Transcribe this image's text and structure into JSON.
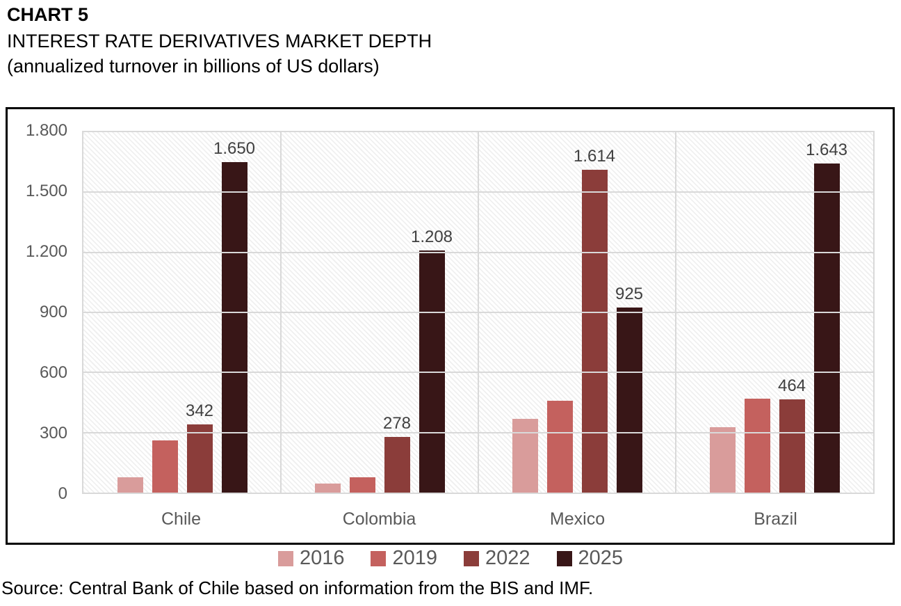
{
  "chart_data": {
    "type": "bar",
    "title": "CHART 5",
    "subtitle": "INTEREST RATE DERIVATIVES MARKET DEPTH",
    "subtitle2": "(annualized turnover in billions of US dollars)",
    "categories": [
      "Chile",
      "Colombia",
      "Mexico",
      "Brazil"
    ],
    "series": [
      {
        "name": "2016",
        "color": "#D99C9B",
        "values": [
          75,
          45,
          370,
          325
        ],
        "labels": [
          "",
          "",
          "",
          ""
        ]
      },
      {
        "name": "2019",
        "color": "#C4615E",
        "values": [
          260,
          78,
          460,
          470
        ],
        "labels": [
          "",
          "",
          "",
          ""
        ]
      },
      {
        "name": "2022",
        "color": "#8B3D3A",
        "values": [
          342,
          278,
          1614,
          464
        ],
        "labels": [
          "342",
          "278",
          "1.614",
          "464"
        ]
      },
      {
        "name": "2025",
        "color": "#381617",
        "values": [
          1650,
          1208,
          925,
          1643
        ],
        "labels": [
          "1.650",
          "1.208",
          "925",
          "1.643"
        ]
      }
    ],
    "ylim": [
      0,
      1800
    ],
    "y_tick_interval": 300,
    "y_tick_labels": [
      "0",
      "300",
      "600",
      "900",
      "1.200",
      "1.500",
      "1.800"
    ],
    "grid": true,
    "plot_background": "diagonal-hatch",
    "legend_position": "bottom",
    "colors": {
      "gridline": "#D9D9D9",
      "axis_text": "#595959",
      "data_label": "#404040",
      "frame_border": "#000000"
    },
    "source": "Source: Central Bank of Chile based on information from the BIS and IMF."
  }
}
